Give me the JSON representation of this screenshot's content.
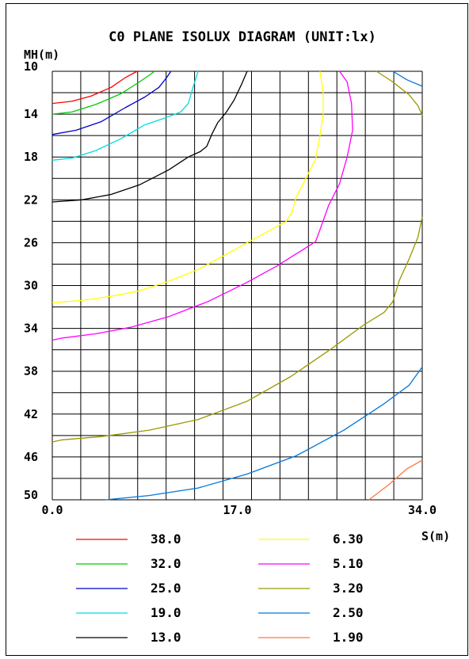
{
  "chart_data": {
    "type": "line",
    "title": "C0 PLANE ISOLUX DIAGRAM (UNIT:lx)",
    "ylabel": "MH(m)",
    "xlabel": "S(m)",
    "xlim": [
      0,
      34
    ],
    "ylim": [
      10,
      50
    ],
    "y_inverted": true,
    "grid": true,
    "x_tick_labels": [
      "0.0",
      "17.0",
      "34.0"
    ],
    "x_tick_values": [
      0,
      17,
      34
    ],
    "y_tick_labels": [
      "10",
      "14",
      "18",
      "22",
      "26",
      "30",
      "34",
      "38",
      "42",
      "46",
      "50"
    ],
    "y_tick_values": [
      10,
      14,
      18,
      22,
      26,
      30,
      34,
      38,
      42,
      46,
      50
    ],
    "legend_position": "bottom",
    "series": [
      {
        "name": "38.0",
        "color": "#ff0000",
        "points": [
          [
            0,
            13.0
          ],
          [
            1.8,
            12.8
          ],
          [
            3.6,
            12.3
          ],
          [
            5.4,
            11.5
          ],
          [
            6.7,
            10.6
          ],
          [
            7.8,
            10.0
          ]
        ]
      },
      {
        "name": "32.0",
        "color": "#00cc00",
        "points": [
          [
            0,
            14.0
          ],
          [
            1.8,
            13.8
          ],
          [
            4.0,
            13.1
          ],
          [
            6.3,
            12.1
          ],
          [
            8.0,
            11.0
          ],
          [
            9.0,
            10.3
          ],
          [
            9.4,
            10.0
          ]
        ]
      },
      {
        "name": "25.0",
        "color": "#0000cc",
        "points": [
          [
            0,
            15.9
          ],
          [
            2.2,
            15.5
          ],
          [
            4.5,
            14.7
          ],
          [
            6.7,
            13.4
          ],
          [
            8.5,
            12.4
          ],
          [
            9.8,
            11.5
          ],
          [
            10.5,
            10.6
          ],
          [
            10.9,
            10.0
          ]
        ]
      },
      {
        "name": "19.0",
        "color": "#00dddd",
        "points": [
          [
            0,
            18.3
          ],
          [
            1.8,
            18.1
          ],
          [
            4.0,
            17.4
          ],
          [
            6.3,
            16.3
          ],
          [
            8.5,
            15.0
          ],
          [
            10.5,
            14.3
          ],
          [
            11.8,
            13.8
          ],
          [
            12.5,
            13.0
          ],
          [
            12.9,
            11.6
          ],
          [
            13.4,
            10.0
          ]
        ]
      },
      {
        "name": "13.0",
        "color": "#000000",
        "points": [
          [
            0,
            22.2
          ],
          [
            2.7,
            22.0
          ],
          [
            5.4,
            21.5
          ],
          [
            8.0,
            20.6
          ],
          [
            10.7,
            19.2
          ],
          [
            12.5,
            18.0
          ],
          [
            13.6,
            17.5
          ],
          [
            14.2,
            17.0
          ],
          [
            14.7,
            15.8
          ],
          [
            15.2,
            14.8
          ],
          [
            16.0,
            13.8
          ],
          [
            16.7,
            12.7
          ],
          [
            17.4,
            11.2
          ],
          [
            17.9,
            10.0
          ]
        ]
      },
      {
        "name": "6.30",
        "color": "#ffff00",
        "points": [
          [
            0,
            31.6
          ],
          [
            2.7,
            31.4
          ],
          [
            5.4,
            31.0
          ],
          [
            8.0,
            30.5
          ],
          [
            10.7,
            29.6
          ],
          [
            13.4,
            28.5
          ],
          [
            15.6,
            27.3
          ],
          [
            17.9,
            26.0
          ],
          [
            20.1,
            24.8
          ],
          [
            21.5,
            24.0
          ],
          [
            22.0,
            23.2
          ],
          [
            22.4,
            21.8
          ],
          [
            23.3,
            20.0
          ],
          [
            24.2,
            18.2
          ],
          [
            24.6,
            16.0
          ],
          [
            24.9,
            14.0
          ],
          [
            24.9,
            12.0
          ],
          [
            24.6,
            10.0
          ]
        ]
      },
      {
        "name": "5.10",
        "color": "#ff00ff",
        "points": [
          [
            0,
            35.1
          ],
          [
            0.9,
            34.9
          ],
          [
            4.0,
            34.5
          ],
          [
            7.2,
            33.9
          ],
          [
            10.7,
            32.9
          ],
          [
            14.3,
            31.5
          ],
          [
            17.9,
            29.7
          ],
          [
            20.6,
            28.2
          ],
          [
            22.8,
            26.8
          ],
          [
            24.2,
            25.9
          ],
          [
            24.7,
            24.5
          ],
          [
            25.4,
            22.5
          ],
          [
            26.4,
            20.5
          ],
          [
            27.1,
            18.0
          ],
          [
            27.6,
            15.5
          ],
          [
            27.5,
            13.0
          ],
          [
            27.1,
            11.0
          ],
          [
            26.4,
            10.0
          ]
        ]
      },
      {
        "name": "3.20",
        "color": "#999900",
        "points": [
          [
            0,
            44.6
          ],
          [
            0.9,
            44.4
          ],
          [
            4.5,
            44.1
          ],
          [
            8.9,
            43.5
          ],
          [
            13.4,
            42.5
          ],
          [
            17.9,
            40.8
          ],
          [
            21.9,
            38.5
          ],
          [
            25.5,
            36.0
          ],
          [
            28.6,
            33.7
          ],
          [
            30.5,
            32.5
          ],
          [
            31.3,
            31.5
          ],
          [
            31.9,
            29.5
          ],
          [
            32.8,
            27.5
          ],
          [
            33.6,
            25.5
          ],
          [
            34.0,
            23.6
          ]
        ]
      },
      {
        "name": "2.50",
        "color": "#0077dd",
        "points": [
          [
            4.9,
            50.0
          ],
          [
            8.9,
            49.6
          ],
          [
            13.4,
            48.9
          ],
          [
            17.9,
            47.6
          ],
          [
            22.4,
            45.9
          ],
          [
            26.8,
            43.5
          ],
          [
            30.4,
            41.1
          ],
          [
            32.8,
            39.3
          ],
          [
            34.0,
            37.6
          ]
        ]
      },
      {
        "name": "1.90",
        "color": "#ff7744",
        "points": [
          [
            29.1,
            50.0
          ],
          [
            30.9,
            48.6
          ],
          [
            32.6,
            47.1
          ],
          [
            34.0,
            46.3
          ]
        ]
      }
    ],
    "extra_curves": [
      {
        "color": "#0077dd",
        "points": [
          [
            31.3,
            10.0
          ],
          [
            32.6,
            10.8
          ],
          [
            34.0,
            11.4
          ]
        ]
      },
      {
        "color": "#999900",
        "points": [
          [
            29.8,
            10.0
          ],
          [
            31.3,
            11.0
          ],
          [
            32.8,
            12.2
          ],
          [
            33.6,
            13.2
          ],
          [
            34.0,
            14.1
          ]
        ]
      }
    ]
  }
}
